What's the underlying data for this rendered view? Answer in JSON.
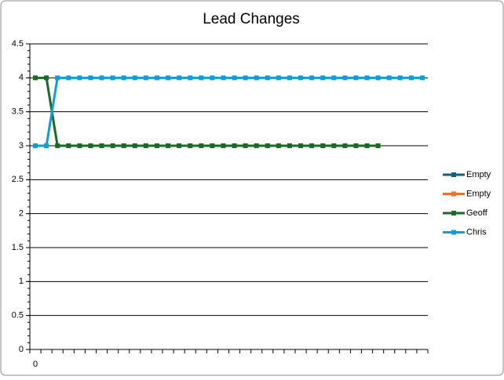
{
  "chart_data": {
    "type": "line",
    "title": "Lead Changes",
    "categories": [
      "0",
      null,
      null,
      null,
      null,
      null,
      null,
      null,
      null,
      null,
      null,
      null,
      null,
      null,
      null,
      null,
      null,
      null,
      null,
      null,
      null,
      null,
      null,
      null,
      null,
      null,
      null,
      null,
      null,
      null,
      null,
      null,
      null,
      null,
      null,
      null
    ],
    "series": [
      {
        "name": "Empty",
        "color": "#156082",
        "values": [
          null,
          null,
          null,
          null,
          null,
          null,
          null,
          null,
          null,
          null,
          null,
          null,
          null,
          null,
          null,
          null,
          null,
          null,
          null,
          null,
          null,
          null,
          null,
          null,
          null,
          null,
          null,
          null,
          null,
          null,
          null,
          null,
          null,
          null,
          null,
          null
        ]
      },
      {
        "name": "Empty",
        "color": "#e97132",
        "values": [
          null,
          null,
          null,
          null,
          null,
          null,
          null,
          null,
          null,
          null,
          null,
          null,
          null,
          null,
          null,
          null,
          null,
          null,
          null,
          null,
          null,
          null,
          null,
          null,
          null,
          null,
          null,
          null,
          null,
          null,
          null,
          null,
          null,
          null,
          null,
          null
        ]
      },
      {
        "name": "Geoff",
        "color": "#196b24",
        "values": [
          4,
          4,
          3,
          3,
          3,
          3,
          3,
          3,
          3,
          3,
          3,
          3,
          3,
          3,
          3,
          3,
          3,
          3,
          3,
          3,
          3,
          3,
          3,
          3,
          3,
          3,
          3,
          3,
          3,
          3,
          3,
          3,
          null,
          null,
          null,
          null
        ]
      },
      {
        "name": "Chris",
        "color": "#0f9ed5",
        "values": [
          3,
          3,
          4,
          4,
          4,
          4,
          4,
          4,
          4,
          4,
          4,
          4,
          4,
          4,
          4,
          4,
          4,
          4,
          4,
          4,
          4,
          4,
          4,
          4,
          4,
          4,
          4,
          4,
          4,
          4,
          4,
          4,
          4,
          4,
          4,
          4
        ]
      }
    ],
    "ylim": [
      0,
      4.5
    ],
    "yticks": [
      0,
      0.5,
      1,
      1.5,
      2,
      2.5,
      3,
      3.5,
      4,
      4.5
    ],
    "grid": true,
    "legend": "right"
  }
}
